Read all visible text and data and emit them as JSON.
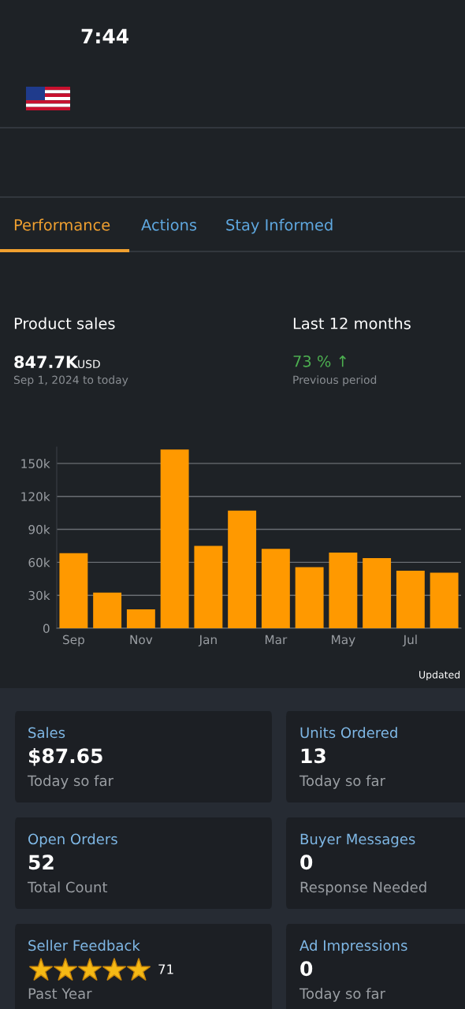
{
  "chart_data": {
    "type": "bar",
    "title": "Product sales",
    "categories": [
      "Sep",
      null,
      "Nov",
      null,
      "Jan",
      null,
      "Mar",
      null,
      "May",
      null,
      "Jul",
      null
    ],
    "values": [
      68300,
      32500,
      17200,
      162700,
      74900,
      107100,
      72200,
      55600,
      68800,
      63800,
      52400,
      50500
    ],
    "color": "#ff9900",
    "ylim": [
      0,
      165000
    ],
    "yticks": [
      0,
      {
        "value": 30000,
        "label": "30k"
      },
      {
        "value": 60000,
        "label": "60k"
      },
      {
        "value": 90000,
        "label": "90k"
      },
      {
        "value": 120000,
        "label": "120k"
      },
      {
        "value": 150000,
        "label": "150k"
      }
    ],
    "grid": "y",
    "annotations": [
      "7:44",
      "Performance",
      "Actions",
      "Stay Informed",
      "Last 12 months",
      "847.7K",
      "USD",
      "Sep 1, 2024 to today",
      "73 % ↑",
      "Previous period",
      "Updated",
      "Sales",
      "$87.65",
      "Today so far",
      "Units Ordered",
      "13",
      "Today so far",
      "Open Orders",
      "52",
      "Total Count",
      "Buyer Messages",
      "0",
      "Response Needed",
      "Seller Feedback",
      "71",
      "Past Year",
      "Ad Impressions",
      "0",
      "Today so far"
    ]
  }
}
